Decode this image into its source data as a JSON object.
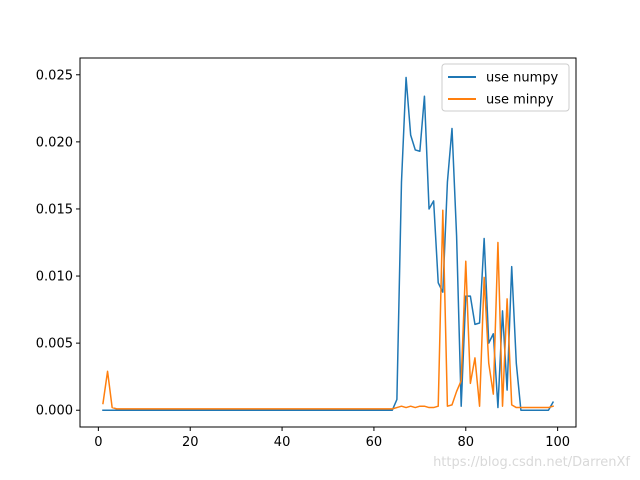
{
  "chart_data": {
    "type": "line",
    "title": "",
    "xlabel": "",
    "ylabel": "",
    "xlim": [
      -4,
      104
    ],
    "ylim": [
      -0.00125,
      0.02625
    ],
    "xticks": [
      0,
      20,
      40,
      60,
      80,
      100
    ],
    "xtick_labels": [
      "0",
      "20",
      "40",
      "60",
      "80",
      "100"
    ],
    "yticks": [
      0.0,
      0.005,
      0.01,
      0.015,
      0.02,
      0.025
    ],
    "ytick_labels": [
      "0.000",
      "0.005",
      "0.010",
      "0.015",
      "0.020",
      "0.025"
    ],
    "grid": false,
    "legend_position": "top-right",
    "series": [
      {
        "name": "use numpy",
        "color": "#1f77b4",
        "x": [
          1,
          2,
          3,
          4,
          5,
          6,
          7,
          8,
          9,
          10,
          11,
          12,
          13,
          14,
          15,
          16,
          17,
          18,
          19,
          20,
          21,
          22,
          23,
          24,
          25,
          26,
          27,
          28,
          29,
          30,
          31,
          32,
          33,
          34,
          35,
          36,
          37,
          38,
          39,
          40,
          41,
          42,
          43,
          44,
          45,
          46,
          47,
          48,
          49,
          50,
          51,
          52,
          53,
          54,
          55,
          56,
          57,
          58,
          59,
          60,
          61,
          62,
          63,
          64,
          65,
          66,
          67,
          68,
          69,
          70,
          71,
          72,
          73,
          74,
          75,
          76,
          77,
          78,
          79,
          80,
          81,
          82,
          83,
          84,
          85,
          86,
          87,
          88,
          89,
          90,
          91,
          92,
          93,
          94,
          95,
          96,
          97,
          98,
          99
        ],
        "y": [
          0,
          0,
          0,
          0,
          0,
          0,
          0,
          0,
          0,
          0,
          0,
          0,
          0,
          0,
          0,
          0,
          0,
          0,
          0,
          0,
          0,
          0,
          0,
          0,
          0,
          0,
          0,
          0,
          0,
          0,
          0,
          0,
          0,
          0,
          0,
          0,
          0,
          0,
          0,
          0,
          0,
          0,
          0,
          0,
          0,
          0,
          0,
          0,
          0,
          0,
          0,
          0,
          0,
          0,
          0,
          0,
          0,
          0,
          0,
          0,
          0,
          0,
          0,
          0,
          0.0008,
          0.017,
          0.0248,
          0.0205,
          0.0194,
          0.0193,
          0.0234,
          0.015,
          0.0156,
          0.0095,
          0.0088,
          0.017,
          0.021,
          0.013,
          0.0003,
          0.0085,
          0.0085,
          0.0064,
          0.0065,
          0.0128,
          0.005,
          0.0057,
          0.0002,
          0.0074,
          0.0015,
          0.0107,
          0.0035,
          0,
          0,
          0,
          0,
          0,
          0,
          0,
          0.0006
        ]
      },
      {
        "name": "use minpy",
        "color": "#ff7f0e",
        "x": [
          1,
          2,
          3,
          4,
          5,
          6,
          7,
          8,
          9,
          10,
          11,
          12,
          13,
          14,
          15,
          16,
          17,
          18,
          19,
          20,
          21,
          22,
          23,
          24,
          25,
          26,
          27,
          28,
          29,
          30,
          31,
          32,
          33,
          34,
          35,
          36,
          37,
          38,
          39,
          40,
          41,
          42,
          43,
          44,
          45,
          46,
          47,
          48,
          49,
          50,
          51,
          52,
          53,
          54,
          55,
          56,
          57,
          58,
          59,
          60,
          61,
          62,
          63,
          64,
          65,
          66,
          67,
          68,
          69,
          70,
          71,
          72,
          73,
          74,
          75,
          76,
          77,
          78,
          79,
          80,
          81,
          82,
          83,
          84,
          85,
          86,
          87,
          88,
          89,
          90,
          91,
          92,
          93,
          94,
          95,
          96,
          97,
          98,
          99
        ],
        "y": [
          0.0005,
          0.0029,
          0.0002,
          0.0001,
          0.0001,
          0.0001,
          0.0001,
          0.0001,
          0.0001,
          0.0001,
          0.0001,
          0.0001,
          0.0001,
          0.0001,
          0.0001,
          0.0001,
          0.0001,
          0.0001,
          0.0001,
          0.0001,
          0.0001,
          0.0001,
          0.0001,
          0.0001,
          0.0001,
          0.0001,
          0.0001,
          0.0001,
          0.0001,
          0.0001,
          0.0001,
          0.0001,
          0.0001,
          0.0001,
          0.0001,
          0.0001,
          0.0001,
          0.0001,
          0.0001,
          0.0001,
          0.0001,
          0.0001,
          0.0001,
          0.0001,
          0.0001,
          0.0001,
          0.0001,
          0.0001,
          0.0001,
          0.0001,
          0.0001,
          0.0001,
          0.0001,
          0.0001,
          0.0001,
          0.0001,
          0.0001,
          0.0001,
          0.0001,
          0.0001,
          0.0001,
          0.0001,
          0.0001,
          0.0001,
          0.0002,
          0.0003,
          0.0002,
          0.0003,
          0.0002,
          0.0003,
          0.0003,
          0.0002,
          0.0002,
          0.0003,
          0.0149,
          0.0003,
          0.0004,
          0.0014,
          0.0022,
          0.0111,
          0.002,
          0.0039,
          0.0003,
          0.0099,
          0.0035,
          0.0012,
          0.0125,
          0.0003,
          0.0083,
          0.0004,
          0.0002,
          0.0002,
          0.0002,
          0.0002,
          0.0002,
          0.0002,
          0.0002,
          0.0002,
          0.0003
        ]
      }
    ]
  },
  "watermark": "https://blog.csdn.net/DarrenXf"
}
